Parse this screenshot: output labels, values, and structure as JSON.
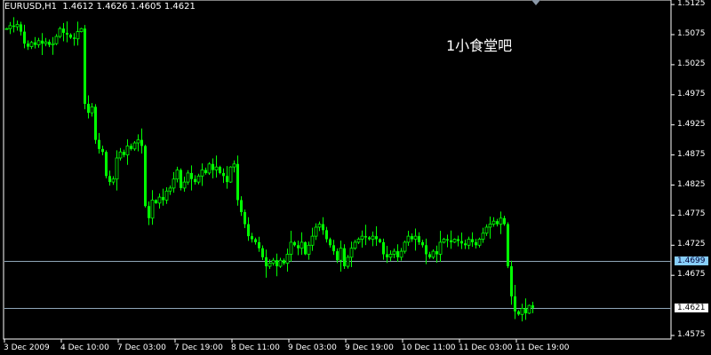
{
  "header": {
    "symbol": "EURUSD,H1",
    "ohlc": "1.4612 1.4626 1.4605 1.4621"
  },
  "watermark": "1小食堂吧",
  "colors": {
    "candle": "#00ff00",
    "background": "#000000",
    "axis": "#ffffff",
    "hline": "#8fa6b8",
    "hline_label_1": "#87cefa",
    "hline_label_2": "#ffffff"
  },
  "chart_data": {
    "type": "candlestick",
    "price_ticks": [
      "1.5125",
      "1.5075",
      "1.5025",
      "1.4975",
      "1.4925",
      "1.4875",
      "1.4825",
      "1.4775",
      "1.4725",
      "1.4675",
      "1.4575"
    ],
    "time_ticks": [
      "3 Dec 2009",
      "4 Dec 10:00",
      "7 Dec 03:00",
      "7 Dec 19:00",
      "8 Dec 11:00",
      "9 Dec 03:00",
      "9 Dec 19:00",
      "10 Dec 11:00",
      "11 Dec 03:00",
      "11 Dec 19:00"
    ],
    "ylim": [
      1.4569,
      1.5136
    ],
    "horizontal_lines": [
      {
        "price": 1.4699,
        "label": "1.4699"
      },
      {
        "price": 1.4621,
        "label": "1.4621"
      }
    ],
    "closes": [
      1.5085,
      1.509,
      1.5088,
      1.5092,
      1.508,
      1.506,
      1.5055,
      1.5062,
      1.5058,
      1.5065,
      1.506,
      1.5063,
      1.5058,
      1.506,
      1.5072,
      1.5085,
      1.5078,
      1.5075,
      1.507,
      1.5068,
      1.508,
      1.5085,
      1.496,
      1.4945,
      1.4955,
      1.49,
      1.4885,
      1.488,
      1.484,
      1.483,
      1.4835,
      1.487,
      1.488,
      1.4875,
      1.489,
      1.4885,
      1.4895,
      1.49,
      1.489,
      1.479,
      1.477,
      1.48,
      1.4795,
      1.4805,
      1.48,
      1.4815,
      1.482,
      1.4835,
      1.485,
      1.482,
      1.483,
      1.4845,
      1.4835,
      1.483,
      1.484,
      1.485,
      1.4845,
      1.486,
      1.485,
      1.4855,
      1.4845,
      1.484,
      1.483,
      1.4855,
      1.486,
      1.48,
      1.478,
      1.476,
      1.474,
      1.4735,
      1.473,
      1.472,
      1.4705,
      1.469,
      1.4695,
      1.47,
      1.469,
      1.47,
      1.4695,
      1.471,
      1.473,
      1.4725,
      1.472,
      1.473,
      1.471,
      1.4725,
      1.474,
      1.4755,
      1.476,
      1.475,
      1.4735,
      1.4725,
      1.4715,
      1.47,
      1.472,
      1.469,
      1.4705,
      1.472,
      1.473,
      1.4735,
      1.474,
      1.4738,
      1.4735,
      1.474,
      1.4735,
      1.473,
      1.471,
      1.4705,
      1.471,
      1.4715,
      1.4705,
      1.4715,
      1.473,
      1.474,
      1.4735,
      1.474,
      1.473,
      1.4725,
      1.471,
      1.4705,
      1.4715,
      1.471,
      1.473,
      1.4735,
      1.4733,
      1.473,
      1.4735,
      1.4732,
      1.4728,
      1.4725,
      1.4735,
      1.473,
      1.4725,
      1.4735,
      1.4745,
      1.4755,
      1.476,
      1.4765,
      1.476,
      1.477,
      1.476,
      1.469,
      1.464,
      1.4615,
      1.461,
      1.462,
      1.4612,
      1.4625,
      1.4621
    ]
  }
}
